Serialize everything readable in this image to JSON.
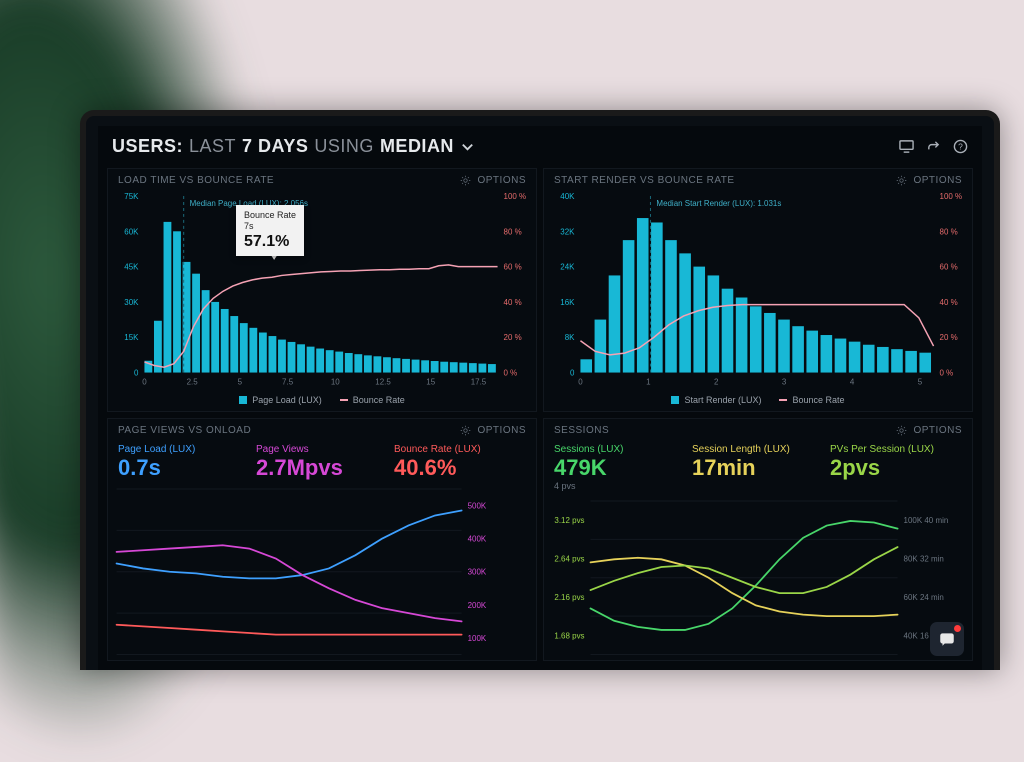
{
  "colors": {
    "bg": "#05090d",
    "panel": "#060b10",
    "grid": "#12181f",
    "tick_text": "#6b7580",
    "bar": "#18b8d6",
    "bar_bright": "#2ad4f0",
    "line_pink": "#f5a2b4",
    "dashed": "#1a6a7a",
    "metric_blue": "#3ea0ff",
    "metric_magenta": "#d648d6",
    "metric_red": "#ff5a5a",
    "metric_green": "#48d66a",
    "metric_yellow": "#e6d25a",
    "metric_lime": "#9ad648",
    "right_axis": "#e56b6b"
  },
  "header": {
    "prefix": "USERS:",
    "span1": "LAST",
    "span2": "7 DAYS",
    "span3": "USING",
    "span4": "MEDIAN"
  },
  "panel1": {
    "title": "LOAD TIME VS BOUNCE RATE",
    "options": "OPTIONS",
    "median_label": "Median Page Load (LUX): 2.056s",
    "median_x": 2.056,
    "tooltip_label": "Bounce Rate",
    "tooltip_sub": "7s",
    "tooltip_value": "57.1%",
    "left_axis": {
      "max": 75,
      "ticks": [
        "75K",
        "60K",
        "45K",
        "30K",
        "15K",
        "0"
      ],
      "unit": "K"
    },
    "right_axis": {
      "max": 100,
      "ticks": [
        "100 %",
        "80 %",
        "60 %",
        "40 %",
        "20 %",
        "0 %"
      ]
    },
    "xmax": 18.5,
    "xticks": [
      "0",
      "2.5",
      "5",
      "7.5",
      "10",
      "12.5",
      "15",
      "17.5"
    ],
    "bars": [
      5,
      22,
      64,
      60,
      47,
      42,
      35,
      30,
      27,
      24,
      21,
      19,
      17,
      15.5,
      14,
      13,
      12,
      11,
      10.2,
      9.5,
      8.9,
      8.3,
      7.8,
      7.3,
      6.9,
      6.5,
      6.1,
      5.8,
      5.5,
      5.2,
      4.9,
      4.6,
      4.4,
      4.2,
      4.0,
      3.8,
      3.6
    ],
    "line": [
      6,
      4,
      3,
      5,
      12,
      26,
      36,
      42,
      46,
      49,
      51,
      52.5,
      53.5,
      54,
      55,
      55.5,
      56,
      56.5,
      57,
      57.2,
      57.5,
      57.5,
      57.8,
      58,
      58.2,
      58.2,
      58.5,
      58.5,
      58.8,
      58.8,
      60.5,
      61,
      60,
      60,
      60,
      60,
      60
    ],
    "legend": [
      {
        "label": "Page Load (LUX)",
        "color": "#18b8d6",
        "shape": "sq"
      },
      {
        "label": "Bounce Rate",
        "color": "#f5a2b4",
        "shape": "line"
      }
    ]
  },
  "panel2": {
    "title": "START RENDER VS BOUNCE RATE",
    "options": "OPTIONS",
    "median_label": "Median Start Render (LUX): 1.031s",
    "median_x": 1.031,
    "left_axis": {
      "max": 40,
      "ticks": [
        "40K",
        "32K",
        "24K",
        "16K",
        "8K",
        "0"
      ],
      "unit": "K"
    },
    "right_axis": {
      "max": 100,
      "ticks": [
        "100 %",
        "80 %",
        "60 %",
        "40 %",
        "20 %",
        "0 %"
      ]
    },
    "xmax": 5.2,
    "xticks": [
      "0",
      "1",
      "2",
      "3",
      "4",
      "5"
    ],
    "bars": [
      3,
      12,
      22,
      30,
      35,
      34,
      30,
      27,
      24,
      22,
      19,
      17,
      15,
      13.5,
      12,
      10.5,
      9.5,
      8.5,
      7.7,
      7,
      6.3,
      5.8,
      5.3,
      4.9,
      4.5
    ],
    "line": [
      18,
      12,
      10,
      11,
      14,
      20,
      27,
      32,
      35,
      37,
      38,
      38.5,
      38.5,
      38.5,
      38.5,
      38.5,
      38.5,
      38.5,
      38.5,
      38.5,
      38.5,
      38.5,
      38.5,
      31,
      15
    ],
    "legend": [
      {
        "label": "Start Render (LUX)",
        "color": "#18b8d6",
        "shape": "sq"
      },
      {
        "label": "Bounce Rate",
        "color": "#f5a2b4",
        "shape": "line"
      }
    ]
  },
  "panel3": {
    "title": "PAGE VIEWS VS ONLOAD",
    "options": "OPTIONS",
    "metrics": [
      {
        "label": "Page Load (LUX)",
        "value": "0.7s",
        "color": "#3ea0ff"
      },
      {
        "label": "Page Views",
        "value": "2.7Mpvs",
        "color": "#d648d6"
      },
      {
        "label": "Bounce Rate (LUX)",
        "value": "40.6%",
        "color": "#ff5a5a"
      }
    ],
    "right_ticks": [
      "500K",
      "400K",
      "300K",
      "200K",
      "100K"
    ],
    "right_color": "#d648d6",
    "lines": [
      {
        "color": "#3ea0ff",
        "data": [
          55,
          52,
          50,
          49,
          47,
          46,
          46,
          48,
          52,
          60,
          70,
          78,
          84,
          87
        ]
      },
      {
        "color": "#d648d6",
        "data": [
          62,
          63,
          64,
          65,
          66,
          64,
          58,
          48,
          40,
          33,
          28,
          25,
          22,
          20
        ]
      },
      {
        "color": "#ff5a5a",
        "data": [
          18,
          17,
          16,
          15,
          14,
          13,
          12,
          12,
          12,
          12,
          12,
          12,
          12,
          12
        ]
      }
    ]
  },
  "panel4": {
    "title": "SESSIONS",
    "options": "OPTIONS",
    "metrics": [
      {
        "label": "Sessions (LUX)",
        "value": "479K",
        "sub": "4 pvs",
        "color": "#48d66a"
      },
      {
        "label": "Session Length (LUX)",
        "value": "17min",
        "color": "#e6d25a"
      },
      {
        "label": "PVs Per Session (LUX)",
        "value": "2pvs",
        "color": "#9ad648"
      }
    ],
    "left_ticks": [
      "3.12 pvs",
      "2.64 pvs",
      "2.16 pvs",
      "1.68 pvs"
    ],
    "right_ticks": [
      "100K  40 min",
      "80K  32 min",
      "60K  24 min",
      "40K  16 min"
    ],
    "lines": [
      {
        "color": "#48d66a",
        "data": [
          30,
          22,
          18,
          16,
          16,
          20,
          30,
          45,
          62,
          76,
          84,
          87,
          86,
          82
        ]
      },
      {
        "color": "#e6d25a",
        "data": [
          60,
          62,
          63,
          62,
          58,
          50,
          40,
          32,
          28,
          26,
          25,
          25,
          25,
          26
        ]
      },
      {
        "color": "#9ad648",
        "data": [
          42,
          48,
          53,
          57,
          58,
          56,
          50,
          44,
          40,
          40,
          44,
          52,
          62,
          70
        ]
      }
    ]
  }
}
